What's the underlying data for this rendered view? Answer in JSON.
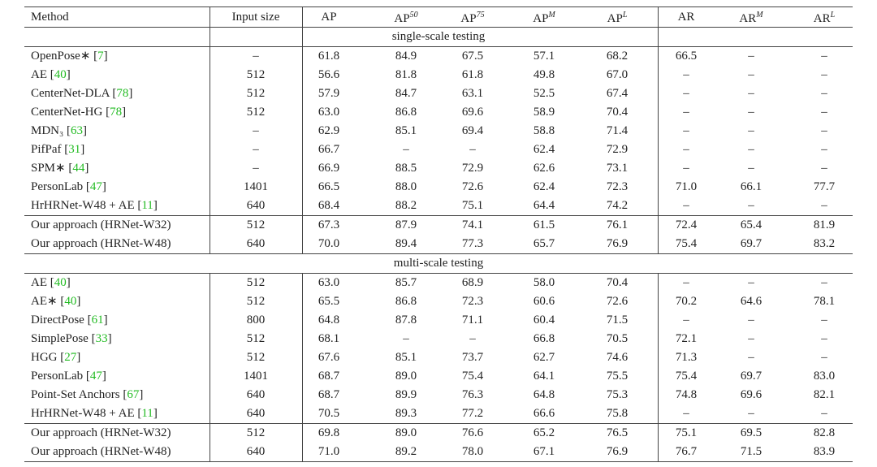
{
  "table": {
    "columns": [
      {
        "text": "Method"
      },
      {
        "text": "Input size"
      },
      {
        "text": "AP"
      },
      {
        "text": "AP",
        "sup": "50"
      },
      {
        "text": "AP",
        "sup": "75"
      },
      {
        "text": "AP",
        "sup": "M"
      },
      {
        "text": "AP",
        "sup": "L"
      },
      {
        "text": "AR"
      },
      {
        "text": "AR",
        "sup": "M"
      },
      {
        "text": "AR",
        "sup": "L"
      }
    ],
    "sections": [
      {
        "title": "single-scale testing",
        "rows": [
          {
            "method": "OpenPose∗",
            "ref": "7",
            "cells": [
              "–",
              "61.8",
              "84.9",
              "67.5",
              "57.1",
              "68.2",
              "66.5",
              "–",
              "–"
            ]
          },
          {
            "method": "AE",
            "ref": "40",
            "cells": [
              "512",
              "56.6",
              "81.8",
              "61.8",
              "49.8",
              "67.0",
              "–",
              "–",
              "–"
            ]
          },
          {
            "method": "CenterNet-DLA",
            "ref": "78",
            "cells": [
              "512",
              "57.9",
              "84.7",
              "63.1",
              "52.5",
              "67.4",
              "–",
              "–",
              "–"
            ]
          },
          {
            "method": "CenterNet-HG",
            "ref": "78",
            "cells": [
              "512",
              "63.0",
              "86.8",
              "69.6",
              "58.9",
              "70.4",
              "–",
              "–",
              "–"
            ]
          },
          {
            "method": "MDN₃",
            "ref": "63",
            "cells": [
              "–",
              "62.9",
              "85.1",
              "69.4",
              "58.8",
              "71.4",
              "–",
              "–",
              "–"
            ]
          },
          {
            "method": "PifPaf",
            "ref": "31",
            "cells": [
              "–",
              "66.7",
              "–",
              "–",
              "62.4",
              "72.9",
              "–",
              "–",
              "–"
            ]
          },
          {
            "method": "SPM∗",
            "ref": "44",
            "cells": [
              "–",
              "66.9",
              "88.5",
              "72.9",
              "62.6",
              "73.1",
              "–",
              "–",
              "–"
            ]
          },
          {
            "method": "PersonLab",
            "ref": "47",
            "cells": [
              "1401",
              "66.5",
              "88.0",
              "72.6",
              "62.4",
              "72.3",
              "71.0",
              "66.1",
              "77.7"
            ]
          },
          {
            "method": "HrHRNet-W48 + AE",
            "ref": "11",
            "cells": [
              "640",
              "68.4",
              "88.2",
              "75.1",
              "64.4",
              "74.2",
              "–",
              "–",
              "–"
            ]
          }
        ],
        "ours": [
          {
            "method": "Our approach (HRNet-W32)",
            "cells": [
              "512",
              "67.3",
              "87.9",
              "74.1",
              "61.5",
              "76.1",
              "72.4",
              "65.4",
              "81.9"
            ]
          },
          {
            "method": "Our approach (HRNet-W48)",
            "cells": [
              "640",
              "70.0",
              "89.4",
              "77.3",
              "65.7",
              "76.9",
              "75.4",
              "69.7",
              "83.2"
            ]
          }
        ]
      },
      {
        "title": "multi-scale testing",
        "rows": [
          {
            "method": "AE",
            "ref": "40",
            "cells": [
              "512",
              "63.0",
              "85.7",
              "68.9",
              "58.0",
              "70.4",
              "–",
              "–",
              "–"
            ]
          },
          {
            "method": "AE∗",
            "ref": "40",
            "cells": [
              "512",
              "65.5",
              "86.8",
              "72.3",
              "60.6",
              "72.6",
              "70.2",
              "64.6",
              "78.1"
            ]
          },
          {
            "method": "DirectPose",
            "ref": "61",
            "cells": [
              "800",
              "64.8",
              "87.8",
              "71.1",
              "60.4",
              "71.5",
              "–",
              "–",
              "–"
            ]
          },
          {
            "method": "SimplePose",
            "ref": "33",
            "cells": [
              "512",
              "68.1",
              "–",
              "–",
              "66.8",
              "70.5",
              "72.1",
              "–",
              "–"
            ]
          },
          {
            "method": "HGG",
            "ref": "27",
            "cells": [
              "512",
              "67.6",
              "85.1",
              "73.7",
              "62.7",
              "74.6",
              "71.3",
              "–",
              "–"
            ]
          },
          {
            "method": "PersonLab",
            "ref": "47",
            "cells": [
              "1401",
              "68.7",
              "89.0",
              "75.4",
              "64.1",
              "75.5",
              "75.4",
              "69.7",
              "83.0"
            ]
          },
          {
            "method": "Point-Set Anchors",
            "ref": "67",
            "cells": [
              "640",
              "68.7",
              "89.9",
              "76.3",
              "64.8",
              "75.3",
              "74.8",
              "69.6",
              "82.1"
            ]
          },
          {
            "method": "HrHRNet-W48 + AE",
            "ref": "11",
            "cells": [
              "640",
              "70.5",
              "89.3",
              "77.2",
              "66.6",
              "75.8",
              "–",
              "–",
              "–"
            ]
          }
        ],
        "ours": [
          {
            "method": "Our approach (HRNet-W32)",
            "cells": [
              "512",
              "69.8",
              "89.0",
              "76.6",
              "65.2",
              "76.5",
              "75.1",
              "69.5",
              "82.8"
            ]
          },
          {
            "method": "Our approach (HRNet-W48)",
            "cells": [
              "640",
              "71.0",
              "89.2",
              "78.0",
              "67.1",
              "76.9",
              "76.7",
              "71.5",
              "83.9"
            ]
          }
        ]
      }
    ]
  }
}
